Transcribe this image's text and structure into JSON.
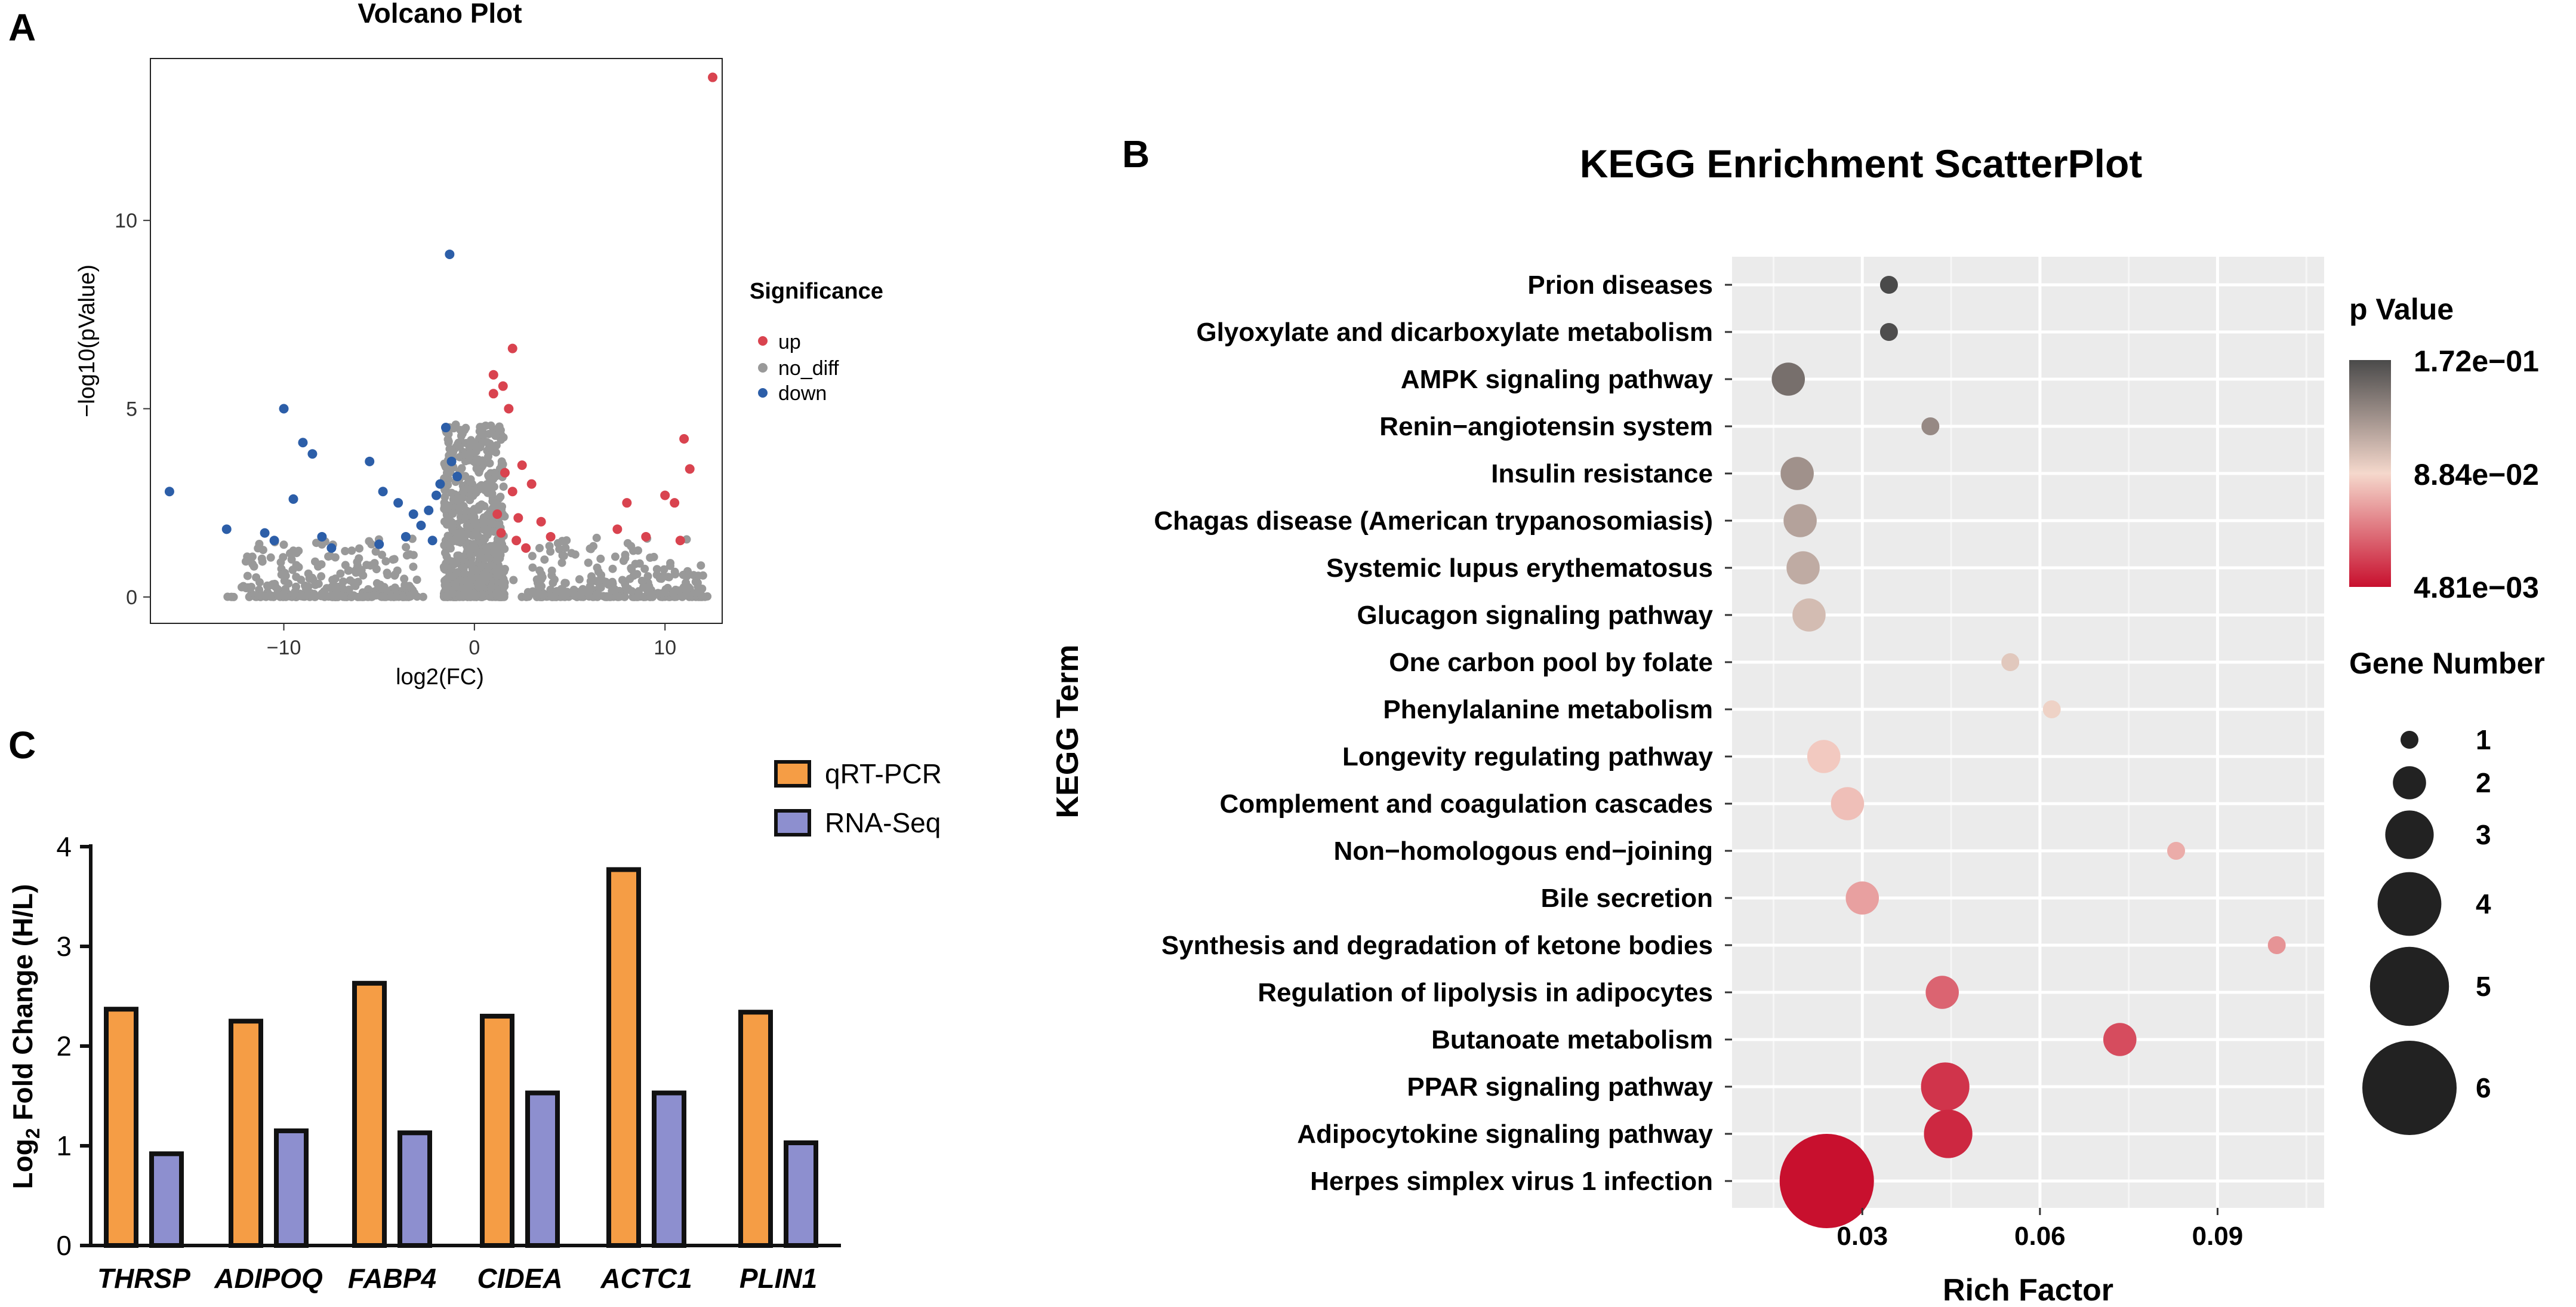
{
  "panels": {
    "a_label": "A",
    "b_label": "B",
    "c_label": "C"
  },
  "chart_data": [
    {
      "id": "volcano",
      "type": "scatter",
      "title": "Volcano Plot",
      "xlabel": "log2(FC)",
      "ylabel": "−log10(pValue)",
      "xlim": [
        -17,
        13
      ],
      "ylim": [
        -0.7,
        14.3
      ],
      "xticks": [
        -10,
        0,
        10
      ],
      "xtick_labels": [
        "−10",
        "0",
        "10"
      ],
      "yticks": [
        0,
        5,
        10
      ],
      "ytick_labels": [
        "0",
        "5",
        "10"
      ],
      "grid": false,
      "legend": {
        "title": "Significance",
        "position": "right",
        "entries": [
          {
            "label": "up",
            "color": "#d9434f"
          },
          {
            "label": "no_diff",
            "color": "#999999"
          },
          {
            "label": "down",
            "color": "#2c5ea8"
          }
        ]
      },
      "colors": {
        "up": "#d9434f",
        "no_diff": "#999999",
        "down": "#2c5ea8"
      },
      "series": [
        {
          "name": "up",
          "points": [
            [
              12.5,
              13.8
            ],
            [
              2,
              6.6
            ],
            [
              1,
              5.9
            ],
            [
              1.5,
              5.6
            ],
            [
              1,
              5.4
            ],
            [
              1.8,
              5
            ],
            [
              2.5,
              3.5
            ],
            [
              3,
              3
            ],
            [
              2,
              2.8
            ],
            [
              4,
              1.6
            ],
            [
              3.5,
              2
            ],
            [
              11,
              4.2
            ],
            [
              11.3,
              3.4
            ],
            [
              10,
              2.7
            ],
            [
              10.5,
              2.5
            ],
            [
              8,
              2.5
            ],
            [
              7.5,
              1.8
            ],
            [
              10.8,
              1.5
            ],
            [
              9,
              1.6
            ],
            [
              1.2,
              2.2
            ],
            [
              1.4,
              1.7
            ],
            [
              2.2,
              1.5
            ],
            [
              2.7,
              1.3
            ],
            [
              1.6,
              3.3
            ],
            [
              2.3,
              2.1
            ]
          ]
        },
        {
          "name": "down",
          "points": [
            [
              -1.3,
              9.1
            ],
            [
              -10,
              5
            ],
            [
              -16,
              2.8
            ],
            [
              -9,
              4.1
            ],
            [
              -8.5,
              3.8
            ],
            [
              -9.5,
              2.6
            ],
            [
              -13,
              1.8
            ],
            [
              -11,
              1.7
            ],
            [
              -8,
              1.6
            ],
            [
              -7.5,
              1.3
            ],
            [
              -5.5,
              3.6
            ],
            [
              -4.8,
              2.8
            ],
            [
              -4,
              2.5
            ],
            [
              -3.2,
              2.2
            ],
            [
              -2.8,
              1.9
            ],
            [
              -2.4,
              2.3
            ],
            [
              -1.8,
              3
            ],
            [
              -1.5,
              4.5
            ],
            [
              -2,
              2.7
            ],
            [
              -1.2,
              3.6
            ],
            [
              -3.6,
              1.6
            ],
            [
              -2.2,
              1.5
            ],
            [
              -0.9,
              3.2
            ],
            [
              -5,
              1.4
            ],
            [
              -10.5,
              1.5
            ]
          ]
        }
      ]
    },
    {
      "id": "kegg",
      "type": "scatter",
      "title": "KEGG Enrichment ScatterPlot",
      "xlabel": "Rich Factor",
      "ylabel": "KEGG Term",
      "xlim": [
        0.008,
        0.108
      ],
      "xticks": [
        0.03,
        0.06,
        0.09
      ],
      "xtick_labels": [
        "0.03",
        "0.06",
        "0.09"
      ],
      "grid": true,
      "color_legend": {
        "title": "p Value",
        "labels": [
          "1.72e−01",
          "8.84e−02",
          "4.81e−03"
        ],
        "gradient": [
          "#4a4a4a",
          "#f5d8cc",
          "#c8102e"
        ]
      },
      "size_legend": {
        "title": "Gene Number",
        "labels": [
          "1",
          "2",
          "3",
          "4",
          "5",
          "6"
        ],
        "values": [
          1,
          2,
          3,
          4,
          5,
          6
        ]
      },
      "terms": [
        "Prion diseases",
        "Glyoxylate and dicarboxylate metabolism",
        "AMPK signaling pathway",
        "Renin−angiotensin system",
        "Insulin resistance",
        "Chagas disease (American trypanosomiasis)",
        "Systemic lupus erythematosus",
        "Glucagon signaling pathway",
        "One carbon pool by folate",
        "Phenylalanine metabolism",
        "Longevity regulating pathway",
        "Complement and coagulation cascades",
        "Non−homologous end−joining",
        "Bile secretion",
        "Synthesis and degradation of ketone bodies",
        "Regulation of lipolysis in adipocytes",
        "Butanoate metabolism",
        "PPAR signaling pathway",
        "Adipocytokine signaling pathway",
        "Herpes simplex virus 1 infection"
      ],
      "rich_factor": [
        0.0345,
        0.0345,
        0.0175,
        0.0415,
        0.019,
        0.0195,
        0.02,
        0.021,
        0.055,
        0.062,
        0.0235,
        0.0275,
        0.083,
        0.03,
        0.1,
        0.0435,
        0.0735,
        0.044,
        0.0445,
        0.024
      ],
      "gene_number": [
        1,
        1,
        2,
        1,
        2,
        2,
        2,
        2,
        1,
        1,
        2,
        2,
        1,
        2,
        1,
        2,
        2,
        3,
        3,
        6
      ],
      "p_value": [
        0.172,
        0.17,
        0.15,
        0.135,
        0.13,
        0.12,
        0.115,
        0.105,
        0.098,
        0.092,
        0.082,
        0.078,
        0.07,
        0.065,
        0.06,
        0.04,
        0.03,
        0.02,
        0.015,
        0.0048
      ]
    },
    {
      "id": "qpcr",
      "type": "bar",
      "xlabel": "",
      "ylabel": "Log2 Fold Change (H/L)",
      "ylabel_parts": {
        "pre": "Log",
        "sub": "2",
        "post": " Fold Change (H/L)"
      },
      "ylim": [
        0,
        4
      ],
      "yticks": [
        0,
        1,
        2,
        3,
        4
      ],
      "ytick_labels": [
        "0",
        "1",
        "2",
        "3",
        "4"
      ],
      "categories": [
        "THRSP",
        "ADIPOQ",
        "FABP4",
        "CIDEA",
        "ACTC1",
        "PLIN1"
      ],
      "series": [
        {
          "name": "qRT-PCR",
          "color": "#f59d45",
          "values": [
            2.37,
            2.25,
            2.63,
            2.3,
            3.77,
            2.34
          ]
        },
        {
          "name": "RNA-Seq",
          "color": "#8d8fcf",
          "values": [
            0.92,
            1.15,
            1.13,
            1.53,
            1.53,
            1.03
          ]
        }
      ],
      "legend": {
        "position": "top-right"
      }
    }
  ]
}
